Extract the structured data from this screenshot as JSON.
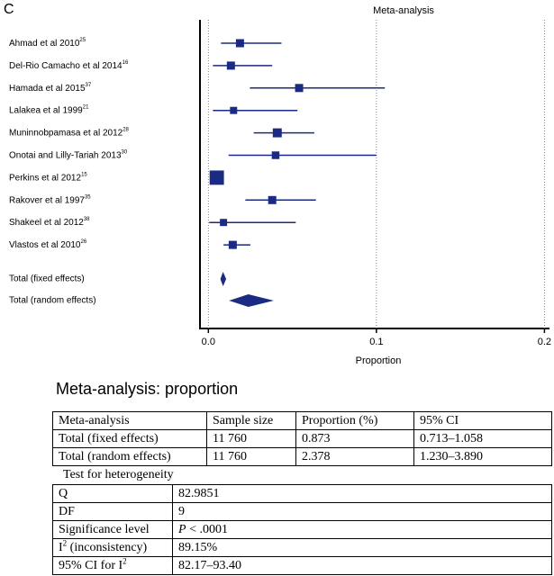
{
  "panel_label": "C",
  "chart_data": {
    "type": "forest",
    "title": "Meta-analysis",
    "xlabel": "Proportion",
    "color": "#1b2a82",
    "categories": [
      "Ahmad et al 2010",
      "Del-Rio Camacho et al 2014",
      "Hamada et al 2015",
      "Lalakea et al 1999",
      "Muninnobpamasa  et al  2012",
      "Onotai and Lilly-Tariah 2013",
      "Perkins et al 2012",
      "Rakover et al 1997",
      "Shakeel et al 2012",
      "Vlastos et al  2010"
    ],
    "refs": [
      "25",
      "16",
      "37",
      "21",
      "28",
      "30",
      "15",
      "35",
      "38",
      "26"
    ],
    "values": [
      0.0188,
      0.0134,
      0.054,
      0.015,
      0.041,
      0.04,
      0.005,
      0.038,
      0.009,
      0.0145
    ],
    "ci_low": [
      0.0075,
      0.0027,
      0.0247,
      0.0027,
      0.027,
      0.012,
      0.004,
      0.022,
      0.0005,
      0.009
    ],
    "ci_high": [
      0.0435,
      0.038,
      0.105,
      0.053,
      0.063,
      0.1,
      0.006,
      0.064,
      0.052,
      0.025
    ],
    "weights": [
      9,
      9,
      9,
      7,
      11,
      8,
      28,
      9,
      7,
      9
    ],
    "pooled": {
      "categories": [
        "Total (fixed effects)",
        "Total (random effects)"
      ],
      "values": [
        0.00873,
        0.02378
      ],
      "ci_low": [
        0.00713,
        0.0123
      ],
      "ci_high": [
        0.01058,
        0.0389
      ]
    },
    "xlim": [
      -0.005,
      0.203
    ],
    "xticks": [
      {
        "value": 0,
        "label": "0.0"
      },
      0.1,
      0.2
    ]
  },
  "summary": {
    "title": "Meta-analysis: proportion",
    "header": [
      "Meta-analysis",
      "Sample size",
      "Proportion (%)",
      "95% CI"
    ],
    "rows": [
      [
        "Total (fixed effects)",
        "11 760",
        "0.873",
        "0.713–1.058"
      ],
      [
        "Total (random effects)",
        "11 760",
        "2.378",
        "1.230–3.890"
      ]
    ]
  },
  "heterogeneity": {
    "title": "Test for heterogeneity",
    "rows": [
      [
        [
          "Q"
        ],
        [
          "82.9851"
        ]
      ],
      [
        [
          "DF"
        ],
        [
          "9"
        ]
      ],
      [
        [
          "Significance level"
        ],
        [
          "P",
          " < .0001"
        ]
      ],
      [
        [
          "I",
          "2",
          " (inconsistency)"
        ],
        [
          "89.15%"
        ]
      ],
      [
        [
          "95% CI for I",
          "2"
        ],
        [
          "82.17–93.40"
        ]
      ]
    ]
  }
}
